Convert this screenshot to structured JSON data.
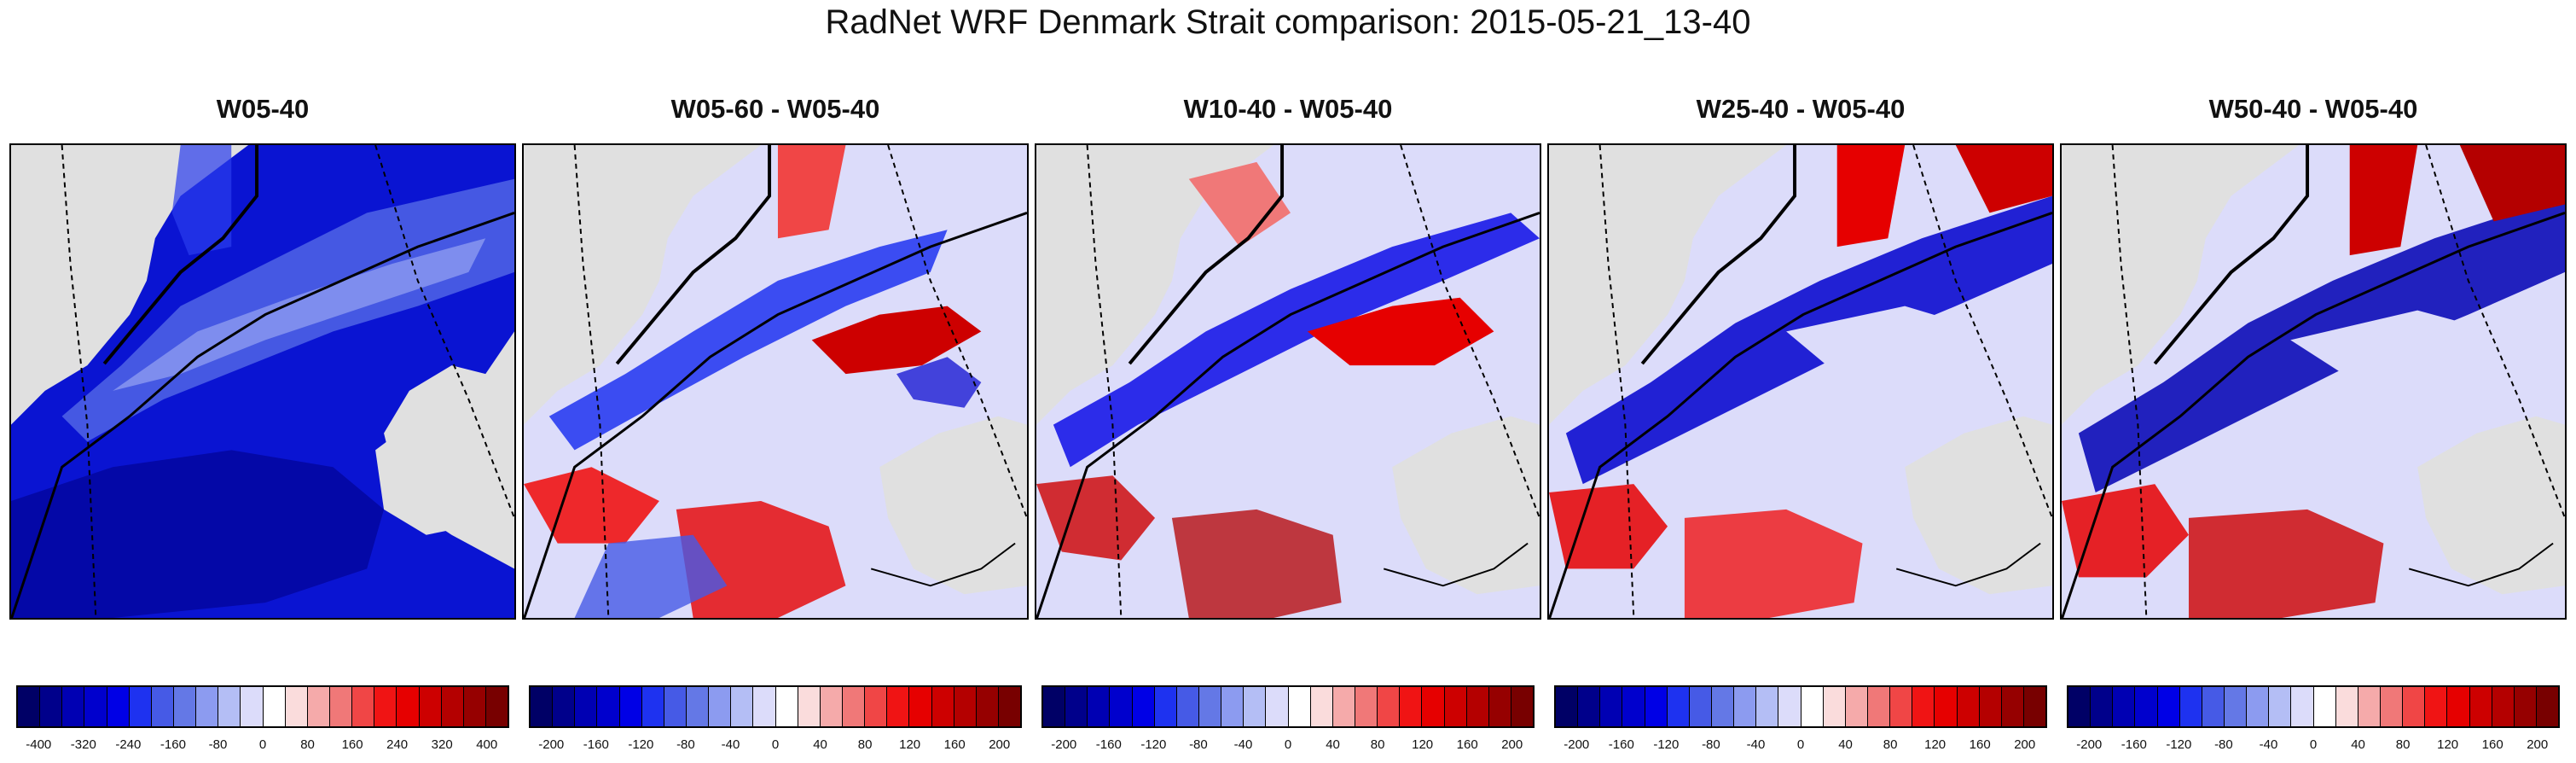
{
  "title": "RadNet WRF Denmark Strait comparison: 2015-05-21_13-40",
  "colors": {
    "land": "#e0e0e0",
    "colorbar_full": [
      "#000066",
      "#00008b",
      "#0000b3",
      "#0000cd",
      "#0000e6",
      "#1e32f0",
      "#465ae6",
      "#6478e6",
      "#8c9bf0",
      "#b4bef5",
      "#dcdcfa",
      "#ffffff",
      "#fadcdc",
      "#f5aaaa",
      "#f07878",
      "#f04646",
      "#f01414",
      "#e60000",
      "#cd0000",
      "#b40000",
      "#960000",
      "#780000"
    ],
    "colorbar_diff": [
      "#000066",
      "#00008b",
      "#0000b3",
      "#0000cd",
      "#0000e6",
      "#1e32f0",
      "#465ae6",
      "#6478e6",
      "#8c9bf0",
      "#b4bef5",
      "#dcdcfa",
      "#ffffff",
      "#fadcdc",
      "#f5aaaa",
      "#f07878",
      "#f04646",
      "#f01414",
      "#e60000",
      "#cd0000",
      "#b40000",
      "#960000",
      "#780000"
    ]
  },
  "panels": [
    {
      "id": "w05-40",
      "title": "W05-40",
      "kind": "absolute",
      "ticks": [
        "-400",
        "-320",
        "-240",
        "-160",
        "-80",
        "0",
        "80",
        "160",
        "240",
        "320",
        "400"
      ]
    },
    {
      "id": "w05-60-diff",
      "title": "W05-60 - W05-40",
      "kind": "difference",
      "ticks": [
        "-200",
        "-160",
        "-120",
        "-80",
        "-40",
        "0",
        "40",
        "80",
        "120",
        "160",
        "200"
      ]
    },
    {
      "id": "w10-40-diff",
      "title": "W10-40 - W05-40",
      "kind": "difference",
      "ticks": [
        "-200",
        "-160",
        "-120",
        "-80",
        "-40",
        "0",
        "40",
        "80",
        "120",
        "160",
        "200"
      ]
    },
    {
      "id": "w25-40-diff",
      "title": "W25-40 - W05-40",
      "kind": "difference",
      "ticks": [
        "-200",
        "-160",
        "-120",
        "-80",
        "-40",
        "0",
        "40",
        "80",
        "120",
        "160",
        "200"
      ]
    },
    {
      "id": "w50-40-diff",
      "title": "W50-40 - W05-40",
      "kind": "difference",
      "ticks": [
        "-200",
        "-160",
        "-120",
        "-80",
        "-40",
        "0",
        "40",
        "80",
        "120",
        "160",
        "200"
      ]
    }
  ]
}
